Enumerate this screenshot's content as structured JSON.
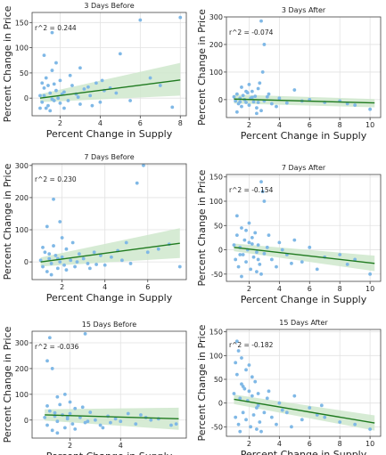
{
  "chart_data": [
    {
      "type": "scatter",
      "title": "3 Days Before",
      "xlabel": "Percent Change in Supply",
      "ylabel": "Percent Change in Price",
      "annotation": "r^2 = 0.244",
      "xlim": [
        0.6,
        8.3
      ],
      "ylim": [
        -35,
        170
      ],
      "xticks": [
        2,
        4,
        6,
        8
      ],
      "yticks": [
        0,
        50,
        100,
        150
      ],
      "grid": true,
      "points": [
        [
          1.0,
          5
        ],
        [
          1.1,
          -8
        ],
        [
          1.2,
          20
        ],
        [
          1.3,
          40
        ],
        [
          1.4,
          -15
        ],
        [
          1.5,
          10
        ],
        [
          1.6,
          55
        ],
        [
          1.7,
          -5
        ],
        [
          1.8,
          15
        ],
        [
          1.9,
          0
        ],
        [
          2.0,
          -10
        ],
        [
          1.2,
          85
        ],
        [
          1.6,
          130
        ],
        [
          1.3,
          -20
        ],
        [
          1.1,
          30
        ],
        [
          2.2,
          12
        ],
        [
          2.4,
          -5
        ],
        [
          2.6,
          25
        ],
        [
          2.8,
          8
        ],
        [
          3.0,
          -12
        ],
        [
          3.2,
          18
        ],
        [
          3.5,
          5
        ],
        [
          3.8,
          30
        ],
        [
          4.0,
          -8
        ],
        [
          4.2,
          15
        ],
        [
          4.5,
          20
        ],
        [
          5.0,
          88
        ],
        [
          5.5,
          -5
        ],
        [
          6.0,
          155
        ],
        [
          6.5,
          40
        ],
        [
          7.0,
          25
        ],
        [
          8.0,
          160
        ],
        [
          7.6,
          -18
        ],
        [
          2.0,
          35
        ],
        [
          1.5,
          -25
        ],
        [
          2.5,
          45
        ],
        [
          3.0,
          60
        ],
        [
          1.8,
          70
        ],
        [
          1.0,
          -20
        ],
        [
          1.4,
          25
        ],
        [
          2.2,
          -20
        ],
        [
          3.6,
          -15
        ],
        [
          4.8,
          10
        ],
        [
          1.7,
          28
        ],
        [
          2.9,
          2
        ],
        [
          1.2,
          5
        ],
        [
          2.1,
          8
        ],
        [
          1.6,
          -2
        ],
        [
          3.4,
          22
        ],
        [
          4.1,
          35
        ]
      ],
      "trend": {
        "x": [
          1.0,
          8.0
        ],
        "y": [
          0,
          36
        ]
      },
      "band": {
        "upper": [
          8,
          70
        ],
        "lower": [
          -8,
          5
        ]
      }
    },
    {
      "type": "scatter",
      "title": "3 Days After",
      "xlabel": "Percent Change in Supply",
      "ylabel": "Percent Change in Price",
      "annotation": "r^2 = -0.074",
      "xlim": [
        0.5,
        10.7
      ],
      "ylim": [
        -65,
        300
      ],
      "xticks": [
        2,
        4,
        6,
        8,
        10
      ],
      "yticks": [
        0,
        100,
        200,
        300
      ],
      "grid": true,
      "points": [
        [
          1.0,
          10
        ],
        [
          1.1,
          -5
        ],
        [
          1.2,
          20
        ],
        [
          1.3,
          -15
        ],
        [
          1.4,
          5
        ],
        [
          1.5,
          -25
        ],
        [
          1.6,
          15
        ],
        [
          1.7,
          0
        ],
        [
          1.8,
          -10
        ],
        [
          1.9,
          25
        ],
        [
          2.0,
          -20
        ],
        [
          2.1,
          5
        ],
        [
          2.2,
          30
        ],
        [
          2.3,
          -8
        ],
        [
          2.4,
          12
        ],
        [
          2.5,
          -30
        ],
        [
          2.6,
          40
        ],
        [
          2.7,
          60
        ],
        [
          2.8,
          285
        ],
        [
          2.9,
          100
        ],
        [
          3.0,
          200
        ],
        [
          2.8,
          -40
        ],
        [
          3.2,
          10
        ],
        [
          3.5,
          -15
        ],
        [
          4.0,
          5
        ],
        [
          4.5,
          -12
        ],
        [
          5.0,
          35
        ],
        [
          5.5,
          -5
        ],
        [
          6.0,
          0
        ],
        [
          7.0,
          -10
        ],
        [
          8.0,
          -5
        ],
        [
          8.5,
          -15
        ],
        [
          10.0,
          -35
        ],
        [
          9.0,
          -20
        ],
        [
          1.2,
          -45
        ],
        [
          1.5,
          45
        ],
        [
          2.0,
          55
        ],
        [
          2.5,
          -50
        ],
        [
          3.3,
          20
        ],
        [
          3.8,
          -25
        ],
        [
          1.8,
          30
        ],
        [
          2.6,
          -10
        ],
        [
          1.4,
          -8
        ],
        [
          2.2,
          8
        ],
        [
          3.0,
          -5
        ]
      ],
      "trend": {
        "x": [
          1.0,
          10.3
        ],
        "y": [
          2,
          -12
        ]
      },
      "band": {
        "upper": [
          18,
          2
        ],
        "lower": [
          -14,
          -28
        ]
      }
    },
    {
      "type": "scatter",
      "title": "7 Days Before",
      "xlabel": "Percent Change in Supply",
      "ylabel": "Percent Change in Price",
      "annotation": "r^2 = 0.230",
      "xlim": [
        0.6,
        7.8
      ],
      "ylim": [
        -55,
        305
      ],
      "xticks": [
        2,
        4,
        6
      ],
      "yticks": [
        0,
        100,
        200,
        300
      ],
      "grid": true,
      "points": [
        [
          1.0,
          5
        ],
        [
          1.1,
          -15
        ],
        [
          1.2,
          30
        ],
        [
          1.3,
          -30
        ],
        [
          1.4,
          10
        ],
        [
          1.5,
          -5
        ],
        [
          1.6,
          50
        ],
        [
          1.7,
          20
        ],
        [
          1.8,
          -20
        ],
        [
          1.9,
          0
        ],
        [
          2.0,
          15
        ],
        [
          2.1,
          -10
        ],
        [
          2.2,
          40
        ],
        [
          1.3,
          110
        ],
        [
          1.6,
          195
        ],
        [
          1.9,
          125
        ],
        [
          2.4,
          5
        ],
        [
          2.6,
          -15
        ],
        [
          2.8,
          25
        ],
        [
          3.0,
          10
        ],
        [
          3.2,
          -5
        ],
        [
          3.5,
          30
        ],
        [
          3.8,
          20
        ],
        [
          4.0,
          -10
        ],
        [
          4.3,
          15
        ],
        [
          4.6,
          35
        ],
        [
          5.0,
          60
        ],
        [
          5.5,
          245
        ],
        [
          5.8,
          300
        ],
        [
          6.0,
          30
        ],
        [
          6.5,
          40
        ],
        [
          7.0,
          55
        ],
        [
          7.5,
          -15
        ],
        [
          2.0,
          75
        ],
        [
          1.5,
          -40
        ],
        [
          2.5,
          60
        ],
        [
          3.3,
          -20
        ],
        [
          4.8,
          5
        ],
        [
          1.1,
          45
        ],
        [
          2.7,
          0
        ],
        [
          1.8,
          10
        ],
        [
          3.6,
          -8
        ],
        [
          2.2,
          -25
        ],
        [
          1.4,
          25
        ],
        [
          5.2,
          -5
        ]
      ],
      "trend": {
        "x": [
          1.0,
          7.5
        ],
        "y": [
          0,
          58
        ]
      },
      "band": {
        "upper": [
          14,
          105
        ],
        "lower": [
          -14,
          12
        ]
      }
    },
    {
      "type": "scatter",
      "title": "7 Days After",
      "xlabel": "Percent Change in Supply",
      "ylabel": "Percent Change in Price",
      "annotation": "r^2 = -0.154",
      "xlim": [
        0.5,
        10.7
      ],
      "ylim": [
        -65,
        155
      ],
      "xticks": [
        2,
        4,
        6,
        8,
        10
      ],
      "yticks": [
        -50,
        0,
        50,
        100,
        150
      ],
      "grid": true,
      "points": [
        [
          1.0,
          10
        ],
        [
          1.1,
          -20
        ],
        [
          1.2,
          30
        ],
        [
          1.3,
          -35
        ],
        [
          1.4,
          5
        ],
        [
          1.5,
          45
        ],
        [
          1.6,
          -10
        ],
        [
          1.7,
          20
        ],
        [
          1.8,
          -25
        ],
        [
          1.9,
          0
        ],
        [
          2.0,
          15
        ],
        [
          2.1,
          -40
        ],
        [
          2.2,
          25
        ],
        [
          2.3,
          -15
        ],
        [
          2.4,
          35
        ],
        [
          2.5,
          -5
        ],
        [
          2.6,
          10
        ],
        [
          2.7,
          -30
        ],
        [
          2.8,
          140
        ],
        [
          2.9,
          120
        ],
        [
          3.0,
          100
        ],
        [
          2.8,
          -50
        ],
        [
          3.2,
          5
        ],
        [
          3.5,
          -20
        ],
        [
          4.0,
          15
        ],
        [
          4.5,
          -10
        ],
        [
          5.0,
          20
        ],
        [
          5.5,
          -25
        ],
        [
          6.0,
          5
        ],
        [
          7.0,
          -15
        ],
        [
          8.0,
          -10
        ],
        [
          8.5,
          -30
        ],
        [
          10.0,
          -50
        ],
        [
          9.0,
          -20
        ],
        [
          1.2,
          70
        ],
        [
          1.5,
          -55
        ],
        [
          2.0,
          55
        ],
        [
          2.5,
          -45
        ],
        [
          3.3,
          30
        ],
        [
          3.8,
          -35
        ],
        [
          4.2,
          0
        ],
        [
          1.8,
          40
        ],
        [
          2.6,
          -20
        ],
        [
          1.4,
          -10
        ],
        [
          2.2,
          12
        ],
        [
          3.0,
          -8
        ],
        [
          6.5,
          -40
        ],
        [
          4.8,
          -28
        ]
      ],
      "trend": {
        "x": [
          1.0,
          10.3
        ],
        "y": [
          5,
          -28
        ]
      },
      "band": {
        "upper": [
          13,
          -12
        ],
        "lower": [
          -3,
          -44
        ]
      }
    },
    {
      "type": "scatter",
      "title": "15 Days Before",
      "xlabel": "Percent Change in Supply",
      "ylabel": "Percent Change in Price",
      "annotation": "r^2 = -0.036",
      "xlim": [
        0.5,
        6.6
      ],
      "ylim": [
        -70,
        345
      ],
      "xticks": [
        2,
        4
      ],
      "yticks": [
        0,
        100,
        200,
        300
      ],
      "grid": true,
      "points": [
        [
          1.0,
          10
        ],
        [
          1.1,
          -20
        ],
        [
          1.2,
          35
        ],
        [
          1.3,
          -40
        ],
        [
          1.4,
          15
        ],
        [
          1.5,
          -5
        ],
        [
          1.6,
          60
        ],
        [
          1.7,
          20
        ],
        [
          1.8,
          -30
        ],
        [
          1.9,
          5
        ],
        [
          2.0,
          25
        ],
        [
          2.1,
          -15
        ],
        [
          2.2,
          45
        ],
        [
          1.2,
          320
        ],
        [
          1.1,
          230
        ],
        [
          1.3,
          200
        ],
        [
          2.6,
          335
        ],
        [
          1.5,
          90
        ],
        [
          1.8,
          100
        ],
        [
          2.4,
          10
        ],
        [
          2.6,
          -10
        ],
        [
          2.8,
          30
        ],
        [
          3.0,
          0
        ],
        [
          3.2,
          -20
        ],
        [
          3.5,
          15
        ],
        [
          3.8,
          5
        ],
        [
          4.0,
          -5
        ],
        [
          4.3,
          25
        ],
        [
          4.6,
          -15
        ],
        [
          5.0,
          10
        ],
        [
          5.5,
          5
        ],
        [
          6.0,
          -20
        ],
        [
          6.2,
          -15
        ],
        [
          2.0,
          70
        ],
        [
          1.5,
          -50
        ],
        [
          2.5,
          50
        ],
        [
          3.3,
          -30
        ],
        [
          4.8,
          20
        ],
        [
          1.1,
          55
        ],
        [
          2.7,
          -5
        ],
        [
          1.9,
          12
        ],
        [
          3.6,
          -10
        ],
        [
          2.2,
          -35
        ],
        [
          1.4,
          28
        ],
        [
          5.2,
          0
        ]
      ],
      "trend": {
        "x": [
          1.0,
          6.3
        ],
        "y": [
          20,
          5
        ]
      },
      "band": {
        "upper": [
          42,
          48
        ],
        "lower": [
          -2,
          -38
        ]
      }
    },
    {
      "type": "scatter",
      "title": "15 Days After",
      "xlabel": "Percent Change in Supply",
      "ylabel": "Percent Change in Price",
      "annotation": "r^2 = -0.182",
      "xlim": [
        0.5,
        10.7
      ],
      "ylim": [
        -70,
        155
      ],
      "xticks": [
        2,
        4,
        6,
        8,
        10
      ],
      "yticks": [
        -50,
        0,
        50,
        100,
        150
      ],
      "grid": true,
      "points": [
        [
          1.0,
          20
        ],
        [
          1.1,
          -30
        ],
        [
          1.2,
          60
        ],
        [
          1.3,
          -45
        ],
        [
          1.4,
          10
        ],
        [
          1.5,
          40
        ],
        [
          1.6,
          -20
        ],
        [
          1.7,
          30
        ],
        [
          1.8,
          -35
        ],
        [
          1.9,
          5
        ],
        [
          2.0,
          25
        ],
        [
          2.1,
          -50
        ],
        [
          2.2,
          15
        ],
        [
          2.3,
          -25
        ],
        [
          2.4,
          45
        ],
        [
          2.5,
          -10
        ],
        [
          2.6,
          20
        ],
        [
          2.7,
          -40
        ],
        [
          1.2,
          130
        ],
        [
          1.3,
          110
        ],
        [
          1.5,
          95
        ],
        [
          2.0,
          80
        ],
        [
          2.8,
          -60
        ],
        [
          3.2,
          10
        ],
        [
          3.5,
          -30
        ],
        [
          4.0,
          0
        ],
        [
          4.5,
          -20
        ],
        [
          5.0,
          15
        ],
        [
          5.5,
          -35
        ],
        [
          6.0,
          -10
        ],
        [
          6.5,
          -25
        ],
        [
          7.0,
          -30
        ],
        [
          8.0,
          -40
        ],
        [
          9.0,
          -45
        ],
        [
          10.0,
          -55
        ],
        [
          1.8,
          70
        ],
        [
          1.4,
          -60
        ],
        [
          2.2,
          55
        ],
        [
          2.5,
          -55
        ],
        [
          3.3,
          25
        ],
        [
          3.8,
          -45
        ],
        [
          4.2,
          -15
        ],
        [
          1.1,
          85
        ],
        [
          2.6,
          -5
        ],
        [
          1.6,
          35
        ],
        [
          3.0,
          -20
        ],
        [
          4.8,
          -50
        ],
        [
          6.8,
          -5
        ]
      ],
      "trend": {
        "x": [
          1.0,
          10.3
        ],
        "y": [
          8,
          -42
        ]
      },
      "band": {
        "upper": [
          18,
          -26
        ],
        "lower": [
          -2,
          -58
        ]
      }
    }
  ],
  "colors": {
    "point": "#7fb8e6",
    "trend": "#1f7a1f",
    "band": "#cfe8cc",
    "grid": "#e2e2e2",
    "axis": "#444444"
  }
}
